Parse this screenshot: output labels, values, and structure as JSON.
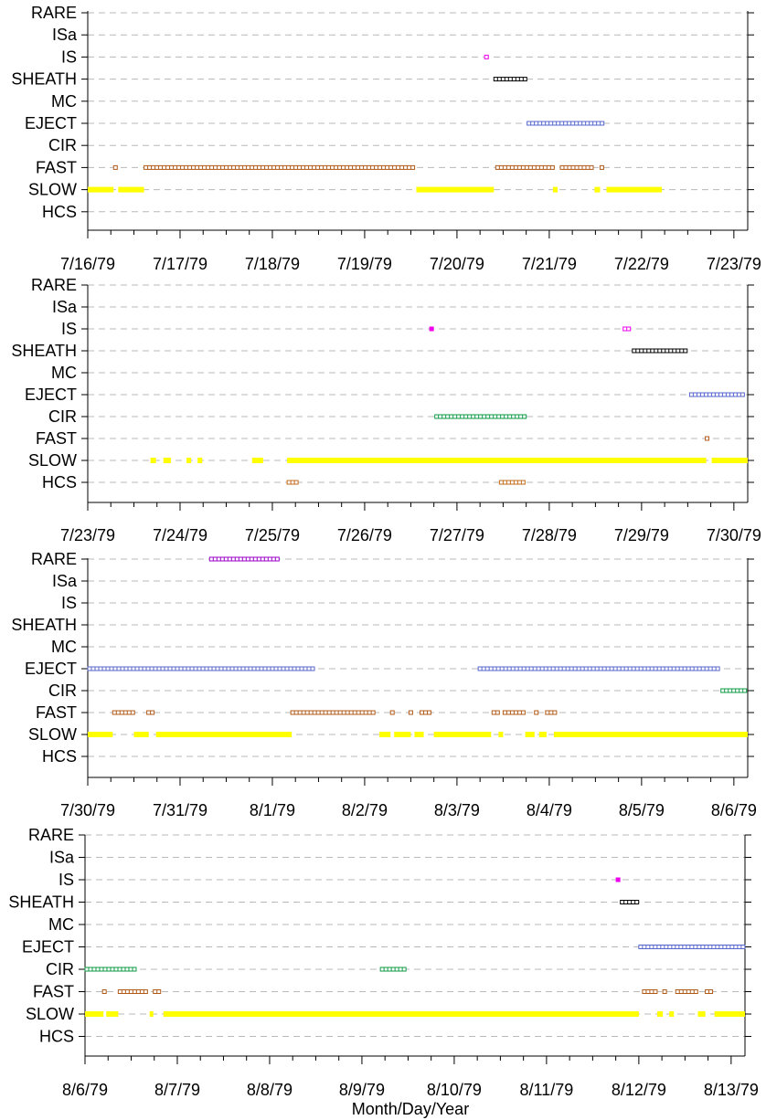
{
  "chart_data": {
    "type": "scatter",
    "categories": [
      "RARE",
      "ISa",
      "IS",
      "SHEATH",
      "MC",
      "EJECT",
      "CIR",
      "FAST",
      "SLOW",
      "HCS"
    ],
    "xlabel": "Month/Day/Year",
    "colors": {
      "RARE": "#9900cc",
      "IS": "#ee00ee",
      "SHEATH": "#000000",
      "EJECT": "#5566cc",
      "CIR": "#119944",
      "FAST": "#b05a18",
      "SLOW": "#ffff00",
      "HCS": "#c06a18"
    },
    "panels": [
      {
        "x_tick_labels": [
          "7/16/79",
          "7/17/79",
          "7/18/79",
          "7/19/79",
          "7/20/79",
          "7/21/79",
          "7/22/79",
          "7/23/79"
        ],
        "x_range_days": [
          0,
          7.15
        ],
        "series": [
          {
            "name": "IS",
            "intervals": [
              [
                4.3,
                4.37
              ]
            ]
          },
          {
            "name": "SHEATH",
            "intervals": [
              [
                4.4,
                4.76
              ]
            ]
          },
          {
            "name": "EJECT",
            "intervals": [
              [
                4.76,
                5.62
              ]
            ]
          },
          {
            "name": "FAST",
            "intervals": [
              [
                0.28,
                0.33
              ],
              [
                0.61,
                3.56
              ],
              [
                4.42,
                5.07
              ],
              [
                5.12,
                5.49
              ],
              [
                5.55,
                5.6
              ]
            ]
          },
          {
            "name": "SLOW",
            "intervals": [
              [
                0.0,
                0.28
              ],
              [
                0.33,
                0.61
              ],
              [
                3.56,
                4.4
              ],
              [
                5.04,
                5.09
              ],
              [
                5.49,
                5.55
              ],
              [
                5.62,
                6.22
              ]
            ]
          }
        ]
      },
      {
        "x_tick_labels": [
          "7/23/79",
          "7/24/79",
          "7/25/79",
          "7/26/79",
          "7/27/79",
          "7/28/79",
          "7/29/79",
          "7/30/79"
        ],
        "x_range_days": [
          0,
          7.15
        ],
        "series": [
          {
            "name": "IS",
            "intervals": [
              [
                3.7,
                3.74
              ],
              [
                5.8,
                5.88
              ]
            ]
          },
          {
            "name": "SHEATH",
            "intervals": [
              [
                5.9,
                6.52
              ]
            ]
          },
          {
            "name": "EJECT",
            "intervals": [
              [
                6.52,
                7.15
              ]
            ]
          },
          {
            "name": "CIR",
            "intervals": [
              [
                3.76,
                4.76
              ]
            ]
          },
          {
            "name": "FAST",
            "intervals": [
              [
                6.69,
                6.74
              ]
            ]
          },
          {
            "name": "SLOW",
            "intervals": [
              [
                0.68,
                0.74
              ],
              [
                0.82,
                0.9
              ],
              [
                1.07,
                1.12
              ],
              [
                1.19,
                1.24
              ],
              [
                1.78,
                1.9
              ],
              [
                2.16,
                6.7
              ],
              [
                6.76,
                7.15
              ]
            ]
          },
          {
            "name": "HCS",
            "intervals": [
              [
                2.16,
                2.28
              ],
              [
                4.46,
                4.76
              ]
            ]
          }
        ]
      },
      {
        "x_tick_labels": [
          "7/30/79",
          "7/31/79",
          "8/1/79",
          "8/2/79",
          "8/3/79",
          "8/4/79",
          "8/5/79",
          "8/6/79"
        ],
        "x_range_days": [
          0,
          7.15
        ],
        "series": [
          {
            "name": "RARE",
            "intervals": [
              [
                1.32,
                2.1
              ]
            ]
          },
          {
            "name": "EJECT",
            "intervals": [
              [
                0.0,
                2.49
              ],
              [
                4.23,
                6.86
              ]
            ]
          },
          {
            "name": "CIR",
            "intervals": [
              [
                6.86,
                7.15
              ]
            ]
          },
          {
            "name": "FAST",
            "intervals": [
              [
                0.27,
                0.52
              ],
              [
                0.64,
                0.72
              ],
              [
                2.2,
                3.15
              ],
              [
                3.28,
                3.32
              ],
              [
                3.48,
                3.53
              ],
              [
                3.6,
                3.72
              ],
              [
                4.38,
                4.46
              ],
              [
                4.5,
                4.75
              ],
              [
                4.84,
                4.88
              ],
              [
                4.96,
                5.1
              ]
            ]
          },
          {
            "name": "SLOW",
            "intervals": [
              [
                0.0,
                0.27
              ],
              [
                0.5,
                0.66
              ],
              [
                0.74,
                2.21
              ],
              [
                3.16,
                3.28
              ],
              [
                3.32,
                3.5
              ],
              [
                3.54,
                3.64
              ],
              [
                3.75,
                4.37
              ],
              [
                4.45,
                4.5
              ],
              [
                4.74,
                4.84
              ],
              [
                4.89,
                4.97
              ],
              [
                5.05,
                7.15
              ]
            ]
          }
        ]
      },
      {
        "x_tick_labels": [
          "8/6/79",
          "8/7/79",
          "8/8/79",
          "8/9/79",
          "8/10/79",
          "8/11/79",
          "8/12/79",
          "8/13/79"
        ],
        "x_range_days": [
          0,
          7.15
        ],
        "series": [
          {
            "name": "IS",
            "intervals": [
              [
                5.75,
                5.8
              ]
            ]
          },
          {
            "name": "SHEATH",
            "intervals": [
              [
                5.8,
                6.0
              ]
            ]
          },
          {
            "name": "EJECT",
            "intervals": [
              [
                6.0,
                7.15
              ]
            ]
          },
          {
            "name": "CIR",
            "intervals": [
              [
                0.0,
                0.57
              ],
              [
                3.2,
                3.5
              ]
            ]
          },
          {
            "name": "FAST",
            "intervals": [
              [
                0.19,
                0.23
              ],
              [
                0.36,
                0.69
              ],
              [
                0.74,
                0.85
              ],
              [
                6.04,
                6.23
              ],
              [
                6.26,
                6.33
              ],
              [
                6.4,
                6.65
              ],
              [
                6.72,
                6.8
              ]
            ]
          },
          {
            "name": "SLOW",
            "intervals": [
              [
                0.0,
                0.2
              ],
              [
                0.23,
                0.36
              ],
              [
                0.7,
                0.74
              ],
              [
                0.85,
                6.0
              ],
              [
                6.2,
                6.26
              ],
              [
                6.33,
                6.38
              ],
              [
                6.64,
                6.72
              ],
              [
                6.82,
                7.15
              ]
            ]
          }
        ]
      }
    ]
  }
}
